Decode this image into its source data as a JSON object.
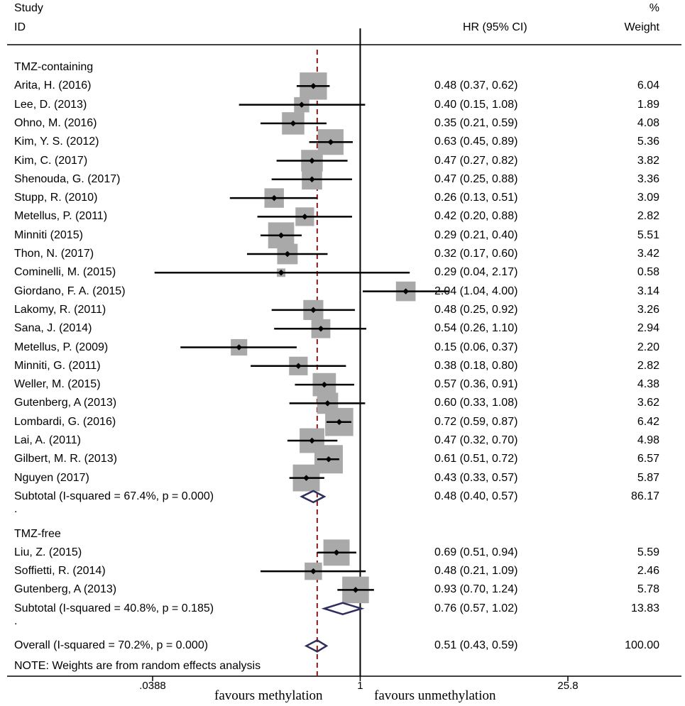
{
  "chart_data": {
    "type": "forest",
    "header": {
      "study": "Study",
      "id": "ID",
      "hr": "HR (95% CI)",
      "pct": "%",
      "weight": "Weight"
    },
    "groups": [
      {
        "name": "TMZ-containing",
        "studies": [
          {
            "label": "Arita, H. (2016)",
            "hr": 0.48,
            "lo": 0.37,
            "hi": 0.62,
            "ci": "0.48 (0.37, 0.62)",
            "weight": "6.04",
            "w": 6.04
          },
          {
            "label": "Lee, D. (2013)",
            "hr": 0.4,
            "lo": 0.15,
            "hi": 1.08,
            "ci": "0.40 (0.15, 1.08)",
            "weight": "1.89",
            "w": 1.89
          },
          {
            "label": "Ohno, M. (2016)",
            "hr": 0.35,
            "lo": 0.21,
            "hi": 0.59,
            "ci": "0.35 (0.21, 0.59)",
            "weight": "4.08",
            "w": 4.08
          },
          {
            "label": "Kim, Y. S. (2012)",
            "hr": 0.63,
            "lo": 0.45,
            "hi": 0.89,
            "ci": "0.63 (0.45, 0.89)",
            "weight": "5.36",
            "w": 5.36
          },
          {
            "label": "Kim, C. (2017)",
            "hr": 0.47,
            "lo": 0.27,
            "hi": 0.82,
            "ci": "0.47 (0.27, 0.82)",
            "weight": "3.82",
            "w": 3.82
          },
          {
            "label": "Shenouda, G. (2017)",
            "hr": 0.47,
            "lo": 0.25,
            "hi": 0.88,
            "ci": "0.47 (0.25, 0.88)",
            "weight": "3.36",
            "w": 3.36
          },
          {
            "label": "Stupp, R. (2010)",
            "hr": 0.26,
            "lo": 0.13,
            "hi": 0.51,
            "ci": "0.26 (0.13, 0.51)",
            "weight": "3.09",
            "w": 3.09
          },
          {
            "label": "Metellus, P. (2011)",
            "hr": 0.42,
            "lo": 0.2,
            "hi": 0.88,
            "ci": "0.42 (0.20, 0.88)",
            "weight": "2.82",
            "w": 2.82
          },
          {
            "label": "Minniti (2015)",
            "hr": 0.29,
            "lo": 0.21,
            "hi": 0.4,
            "ci": "0.29 (0.21, 0.40)",
            "weight": "5.51",
            "w": 5.51
          },
          {
            "label": "Thon, N. (2017)",
            "hr": 0.32,
            "lo": 0.17,
            "hi": 0.6,
            "ci": "0.32 (0.17, 0.60)",
            "weight": "3.42",
            "w": 3.42
          },
          {
            "label": "Cominelli, M. (2015)",
            "hr": 0.29,
            "lo": 0.04,
            "hi": 2.17,
            "ci": "0.29 (0.04, 2.17)",
            "weight": "0.58",
            "w": 0.58
          },
          {
            "label": "Giordano, F. A. (2015)",
            "hr": 2.04,
            "lo": 1.04,
            "hi": 4.0,
            "ci": "2.04 (1.04, 4.00)",
            "weight": "3.14",
            "w": 3.14
          },
          {
            "label": "Lakomy, R. (2011)",
            "hr": 0.48,
            "lo": 0.25,
            "hi": 0.92,
            "ci": "0.48 (0.25, 0.92)",
            "weight": "3.26",
            "w": 3.26
          },
          {
            "label": "Sana, J. (2014)",
            "hr": 0.54,
            "lo": 0.26,
            "hi": 1.1,
            "ci": "0.54 (0.26, 1.10)",
            "weight": "2.94",
            "w": 2.94
          },
          {
            "label": "Metellus, P. (2009)",
            "hr": 0.15,
            "lo": 0.06,
            "hi": 0.37,
            "ci": "0.15 (0.06, 0.37)",
            "weight": "2.20",
            "w": 2.2
          },
          {
            "label": "Minniti, G. (2011)",
            "hr": 0.38,
            "lo": 0.18,
            "hi": 0.8,
            "ci": "0.38 (0.18, 0.80)",
            "weight": "2.82",
            "w": 2.82
          },
          {
            "label": "Weller, M. (2015)",
            "hr": 0.57,
            "lo": 0.36,
            "hi": 0.91,
            "ci": "0.57 (0.36, 0.91)",
            "weight": "4.38",
            "w": 4.38
          },
          {
            "label": "Gutenberg, A (2013)",
            "hr": 0.6,
            "lo": 0.33,
            "hi": 1.08,
            "ci": "0.60 (0.33, 1.08)",
            "weight": "3.62",
            "w": 3.62
          },
          {
            "label": "Lombardi, G. (2016)",
            "hr": 0.72,
            "lo": 0.59,
            "hi": 0.87,
            "ci": "0.72 (0.59, 0.87)",
            "weight": "6.42",
            "w": 6.42
          },
          {
            "label": "Lai, A. (2011)",
            "hr": 0.47,
            "lo": 0.32,
            "hi": 0.7,
            "ci": "0.47 (0.32, 0.70)",
            "weight": "4.98",
            "w": 4.98
          },
          {
            "label": "Gilbert, M. R. (2013)",
            "hr": 0.61,
            "lo": 0.51,
            "hi": 0.72,
            "ci": "0.61 (0.51, 0.72)",
            "weight": "6.57",
            "w": 6.57
          },
          {
            "label": "Nguyen (2017)",
            "hr": 0.43,
            "lo": 0.33,
            "hi": 0.57,
            "ci": "0.43 (0.33, 0.57)",
            "weight": "5.87",
            "w": 5.87
          }
        ],
        "subtotal": {
          "label": "Subtotal  (I-squared = 67.4%, p = 0.000)",
          "hr": 0.48,
          "lo": 0.4,
          "hi": 0.57,
          "ci": "0.48 (0.40, 0.57)",
          "weight": "86.17"
        }
      },
      {
        "name": "TMZ-free",
        "studies": [
          {
            "label": "Liu, Z. (2015)",
            "hr": 0.69,
            "lo": 0.51,
            "hi": 0.94,
            "ci": "0.69 (0.51, 0.94)",
            "weight": "5.59",
            "w": 5.59
          },
          {
            "label": "Soffietti, R. (2014)",
            "hr": 0.48,
            "lo": 0.21,
            "hi": 1.09,
            "ci": "0.48 (0.21, 1.09)",
            "weight": "2.46",
            "w": 2.46
          },
          {
            "label": "Gutenberg, A (2013)",
            "hr": 0.93,
            "lo": 0.7,
            "hi": 1.24,
            "ci": "0.93 (0.70, 1.24)",
            "weight": "5.78",
            "w": 5.78
          }
        ],
        "subtotal": {
          "label": "Subtotal  (I-squared = 40.8%, p = 0.185)",
          "hr": 0.76,
          "lo": 0.57,
          "hi": 1.02,
          "ci": "0.76 (0.57, 1.02)",
          "weight": "13.83"
        }
      }
    ],
    "separator": ".",
    "overall": {
      "label": "Overall  (I-squared = 70.2%, p = 0.000)",
      "hr": 0.51,
      "lo": 0.43,
      "hi": 0.59,
      "ci": "0.51 (0.43, 0.59)",
      "weight": "100.00"
    },
    "note": "NOTE: Weights are from random effects analysis",
    "x_axis": {
      "scale": "log",
      "xlim": [
        0.0388,
        25.8
      ],
      "ticks": [
        {
          "value": 0.0388,
          "label": ".0388"
        },
        {
          "value": 1,
          "label": "1"
        },
        {
          "value": 25.8,
          "label": "25.8"
        }
      ],
      "left_caption": "favours methylation",
      "right_caption": "favours unmethylation"
    },
    "null_line": 1,
    "overall_line": 0.51,
    "colors": {
      "box": "#a9a9a9",
      "line": "#000000",
      "diamond": "#2e2e5c",
      "overall_line": "#8b1a1a"
    }
  }
}
